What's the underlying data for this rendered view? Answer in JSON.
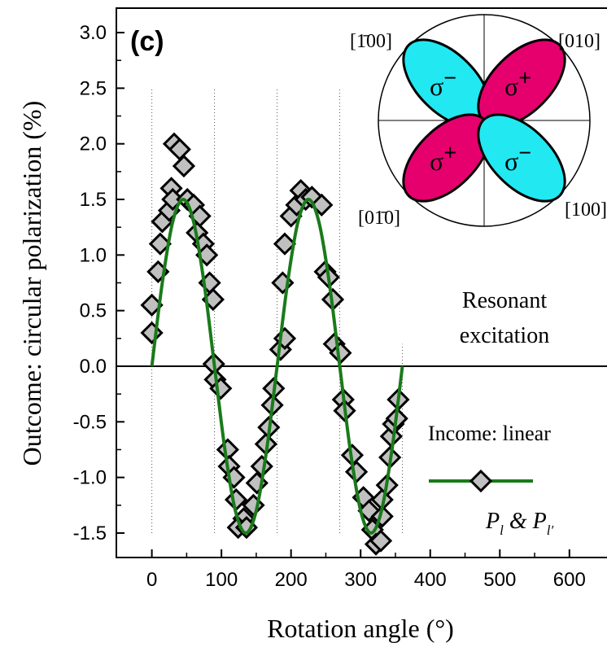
{
  "chart_data": {
    "type": "scatter",
    "xlabel": "Rotation angle (°)",
    "ylabel": "Outcome: circular polarization (%)",
    "xlim": [
      -51,
      654
    ],
    "ylim": [
      -1.72,
      3.22
    ],
    "xticks": [
      0,
      100,
      200,
      300,
      400,
      500,
      600
    ],
    "yticks": [
      {
        "value": 3,
        "label": "3.0"
      },
      2.5,
      {
        "value": 2,
        "label": "2.0"
      },
      1.5,
      {
        "value": 1,
        "label": "1.0"
      },
      0.5,
      {
        "value": 0,
        "label": "0.0"
      },
      -0.5,
      {
        "value": -1,
        "label": "-1.0"
      },
      -1.5
    ],
    "minor_ticks": true,
    "hline": 0,
    "vlines": [
      {
        "x": 0,
        "y": [
          -1.5,
          2.5
        ]
      },
      {
        "x": 90,
        "y": [
          -1.5,
          2.5
        ]
      },
      {
        "x": 180,
        "y": [
          -1.5,
          2.5
        ]
      },
      {
        "x": 270,
        "y": [
          -1.5,
          2.5
        ]
      },
      {
        "x": 360,
        "y": [
          -1.5,
          0.2
        ]
      }
    ],
    "series": [
      {
        "kind": "points",
        "color": "#c0c0c0",
        "x": [
          0,
          0,
          9,
          12,
          15,
          25,
          28,
          32,
          40,
          46,
          30,
          51,
          60,
          69,
          65,
          74,
          79,
          83,
          88,
          89,
          91,
          99,
          109,
          111,
          118,
          121,
          132,
          124,
          136,
          146,
          151,
          158,
          164,
          168,
          173,
          175,
          185,
          191,
          188,
          191,
          200,
          208,
          214,
          221,
          230,
          244,
          249,
          254,
          260,
          262,
          271,
          275,
          277,
          288,
          294,
          304,
          312,
          317,
          322,
          329,
          331,
          331,
          338,
          342,
          344,
          347,
          352,
          354
        ],
        "values": [
          0.3,
          0.55,
          0.85,
          1.1,
          1.3,
          1.4,
          1.6,
          2.0,
          1.95,
          1.8,
          1.5,
          1.5,
          1.45,
          1.35,
          1.2,
          1.1,
          1.0,
          0.75,
          0.6,
          0.02,
          -0.12,
          -0.2,
          -0.75,
          -0.9,
          -1.0,
          -1.2,
          -1.37,
          -1.45,
          -1.45,
          -1.25,
          -1.05,
          -0.9,
          -0.7,
          -0.55,
          -0.35,
          -0.2,
          0.15,
          0.25,
          0.75,
          1.1,
          1.35,
          1.45,
          1.58,
          1.5,
          1.52,
          1.45,
          0.85,
          0.8,
          0.6,
          0.2,
          0.12,
          -0.3,
          -0.4,
          -0.8,
          -0.95,
          -1.18,
          -1.3,
          -1.47,
          -1.6,
          -1.57,
          -1.35,
          -1.2,
          -1.07,
          -0.82,
          -0.63,
          -0.52,
          -0.47,
          -0.3
        ]
      },
      {
        "kind": "line",
        "color": "#1a7a1a",
        "x": [
          0,
          15,
          30,
          45,
          60,
          75,
          90,
          105,
          120,
          135,
          150,
          165,
          180,
          195,
          210,
          225,
          240,
          255,
          270,
          285,
          300,
          315,
          330,
          345,
          360
        ],
        "values": [
          0,
          0.75,
          1.299,
          1.5,
          1.299,
          0.75,
          0,
          -0.75,
          -1.299,
          -1.5,
          -1.299,
          -0.75,
          0,
          0.75,
          1.299,
          1.5,
          1.299,
          0.75,
          0,
          -0.75,
          -1.299,
          -1.5,
          -1.299,
          -0.75,
          0
        ]
      }
    ],
    "panel_label": "(c)",
    "annotation": [
      "Resonant",
      "excitation"
    ],
    "legend": {
      "title": "Income: linear",
      "label_parts": [
        "P",
        "l",
        " & ",
        "P",
        "l′"
      ]
    },
    "inset": {
      "directions": [
        "[1̄00]",
        "[010]",
        "[01̄0]",
        "[100]"
      ],
      "lobes": [
        {
          "symbol": "σ",
          "sign": "−"
        },
        {
          "symbol": "σ",
          "sign": "+"
        },
        {
          "symbol": "σ",
          "sign": "+"
        },
        {
          "symbol": "σ",
          "sign": "−"
        }
      ]
    }
  }
}
